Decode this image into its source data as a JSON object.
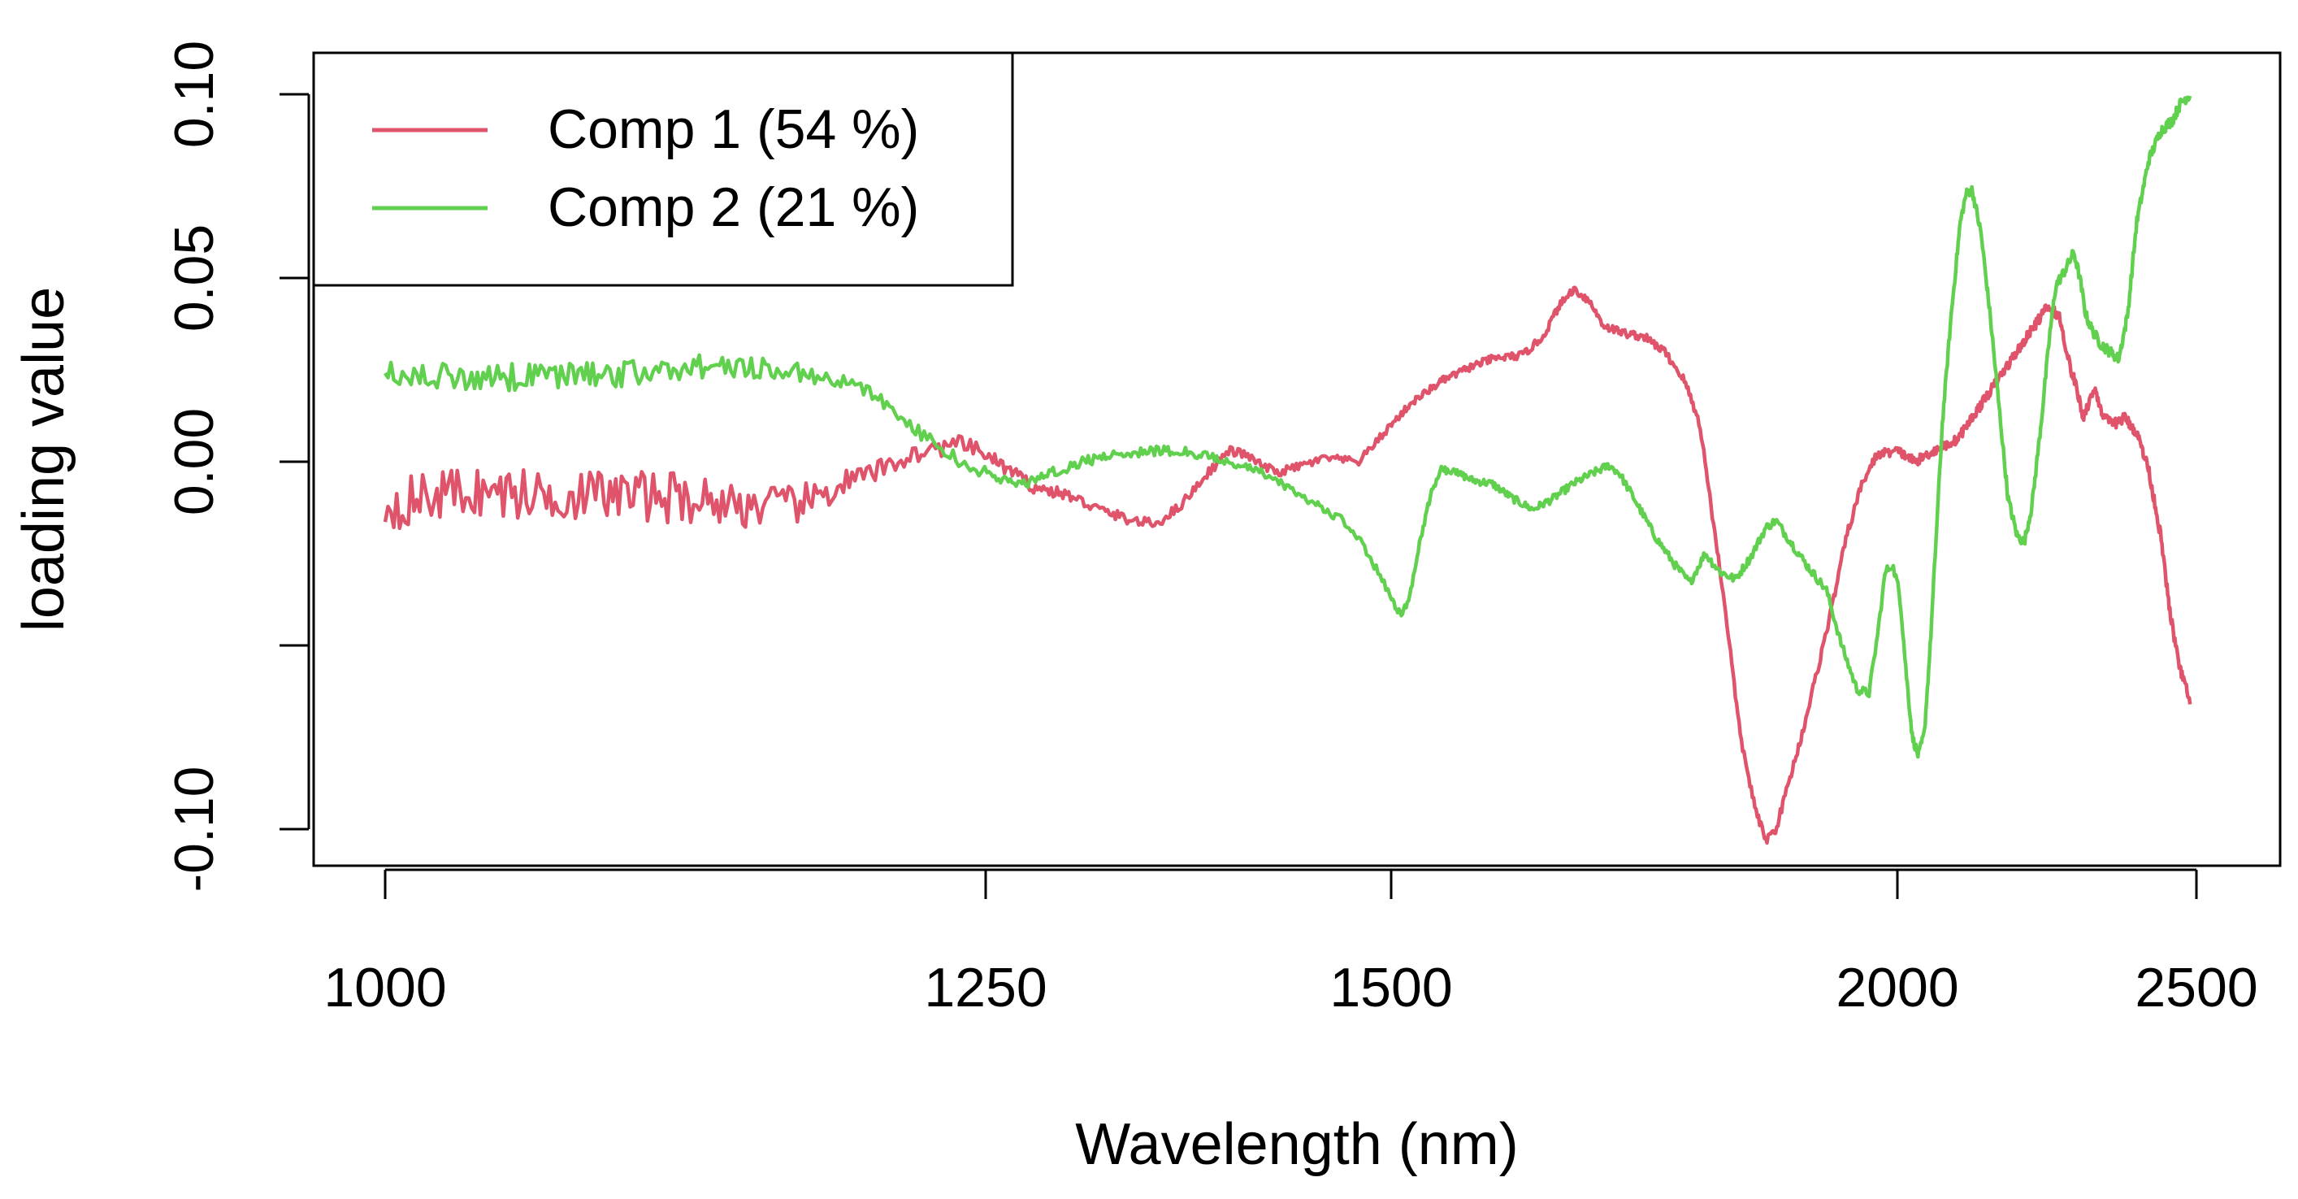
{
  "chart_data": {
    "type": "line",
    "title": "",
    "xlabel": "Wavelength (nm)",
    "ylabel": "loading value",
    "xticks": [
      {
        "label": "1000",
        "value": 1000
      },
      {
        "label": "1250",
        "value": 1250
      },
      {
        "label": "1500",
        "value": 1500
      },
      {
        "label": "2000",
        "value": 2000
      },
      {
        "label": "2500",
        "value": 2500
      }
    ],
    "yticks": [
      {
        "label": "-0.10",
        "value": -0.1
      },
      {
        "label": "",
        "value": -0.05
      },
      {
        "label": "0.00",
        "value": 0.0
      },
      {
        "label": "0.05",
        "value": 0.05
      },
      {
        "label": "0.10",
        "value": 0.1
      }
    ],
    "ylim": [
      -0.111,
      0.111
    ],
    "legend_position": "top-left",
    "series": [
      {
        "name": "Comp 1 (54 %)",
        "color": "#DF536B",
        "noise": [
          [
            1000,
            0.007
          ],
          [
            1120,
            0.007
          ],
          [
            1180,
            0.005
          ],
          [
            1200,
            0.003
          ],
          [
            1250,
            0.002
          ],
          [
            1300,
            0.0015
          ],
          [
            1500,
            0.001
          ],
          [
            2500,
            0.0015
          ]
        ],
        "points": [
          [
            1000,
            -0.012
          ],
          [
            1030,
            -0.008
          ],
          [
            1060,
            -0.009
          ],
          [
            1100,
            -0.009
          ],
          [
            1130,
            -0.01
          ],
          [
            1150,
            -0.012
          ],
          [
            1170,
            -0.012
          ],
          [
            1180,
            -0.01
          ],
          [
            1190,
            -0.006
          ],
          [
            1200,
            -0.004
          ],
          [
            1220,
            0.002
          ],
          [
            1240,
            0.005
          ],
          [
            1260,
            -0.001
          ],
          [
            1280,
            -0.007
          ],
          [
            1300,
            -0.009
          ],
          [
            1320,
            -0.013
          ],
          [
            1340,
            -0.016
          ],
          [
            1355,
            -0.017
          ],
          [
            1370,
            -0.012
          ],
          [
            1385,
            -0.004
          ],
          [
            1400,
            0.003
          ],
          [
            1410,
            0.002
          ],
          [
            1420,
            -0.001
          ],
          [
            1430,
            -0.003
          ],
          [
            1445,
            -0.001
          ],
          [
            1460,
            0.001
          ],
          [
            1480,
            0.0
          ],
          [
            1500,
            0.01
          ],
          [
            1520,
            0.016
          ],
          [
            1550,
            0.022
          ],
          [
            1580,
            0.026
          ],
          [
            1600,
            0.028
          ],
          [
            1630,
            0.029
          ],
          [
            1650,
            0.034
          ],
          [
            1665,
            0.042
          ],
          [
            1680,
            0.047
          ],
          [
            1695,
            0.044
          ],
          [
            1710,
            0.037
          ],
          [
            1730,
            0.035
          ],
          [
            1750,
            0.034
          ],
          [
            1770,
            0.03
          ],
          [
            1790,
            0.022
          ],
          [
            1805,
            0.01
          ],
          [
            1815,
            -0.01
          ],
          [
            1830,
            -0.04
          ],
          [
            1845,
            -0.075
          ],
          [
            1860,
            -0.095
          ],
          [
            1870,
            -0.103
          ],
          [
            1880,
            -0.1
          ],
          [
            1890,
            -0.09
          ],
          [
            1905,
            -0.075
          ],
          [
            1920,
            -0.058
          ],
          [
            1935,
            -0.04
          ],
          [
            1950,
            -0.02
          ],
          [
            1965,
            -0.006
          ],
          [
            1980,
            0.002
          ],
          [
            2000,
            0.003
          ],
          [
            2030,
            0.0
          ],
          [
            2050,
            0.002
          ],
          [
            2100,
            0.006
          ],
          [
            2150,
            0.018
          ],
          [
            2200,
            0.03
          ],
          [
            2250,
            0.042
          ],
          [
            2270,
            0.04
          ],
          [
            2290,
            0.025
          ],
          [
            2300,
            0.02
          ],
          [
            2310,
            0.012
          ],
          [
            2330,
            0.02
          ],
          [
            2345,
            0.012
          ],
          [
            2360,
            0.01
          ],
          [
            2380,
            0.012
          ],
          [
            2400,
            0.008
          ],
          [
            2420,
            -0.002
          ],
          [
            2440,
            -0.02
          ],
          [
            2455,
            -0.04
          ],
          [
            2470,
            -0.055
          ],
          [
            2485,
            -0.063
          ],
          [
            2490,
            -0.067
          ]
        ]
      },
      {
        "name": "Comp 2 (21 %)",
        "color": "#61D04F",
        "noise": [
          [
            1000,
            0.004
          ],
          [
            1100,
            0.0035
          ],
          [
            1150,
            0.003
          ],
          [
            1200,
            0.002
          ],
          [
            1300,
            0.0015
          ],
          [
            1500,
            0.001
          ],
          [
            2500,
            0.0015
          ]
        ],
        "points": [
          [
            1000,
            0.024
          ],
          [
            1050,
            0.023
          ],
          [
            1100,
            0.024
          ],
          [
            1130,
            0.026
          ],
          [
            1150,
            0.026
          ],
          [
            1175,
            0.024
          ],
          [
            1200,
            0.02
          ],
          [
            1215,
            0.012
          ],
          [
            1230,
            0.004
          ],
          [
            1245,
            -0.002
          ],
          [
            1260,
            -0.005
          ],
          [
            1275,
            -0.006
          ],
          [
            1290,
            -0.003
          ],
          [
            1310,
            0.0
          ],
          [
            1330,
            0.002
          ],
          [
            1350,
            0.003
          ],
          [
            1370,
            0.003
          ],
          [
            1390,
            0.001
          ],
          [
            1400,
            0.0
          ],
          [
            1420,
            -0.003
          ],
          [
            1440,
            -0.008
          ],
          [
            1455,
            -0.012
          ],
          [
            1470,
            -0.016
          ],
          [
            1480,
            -0.021
          ],
          [
            1492,
            -0.03
          ],
          [
            1500,
            -0.037
          ],
          [
            1510,
            -0.042
          ],
          [
            1518,
            -0.037
          ],
          [
            1528,
            -0.022
          ],
          [
            1540,
            -0.008
          ],
          [
            1550,
            -0.002
          ],
          [
            1565,
            -0.003
          ],
          [
            1580,
            -0.005
          ],
          [
            1600,
            -0.006
          ],
          [
            1620,
            -0.01
          ],
          [
            1640,
            -0.013
          ],
          [
            1660,
            -0.01
          ],
          [
            1680,
            -0.006
          ],
          [
            1700,
            -0.003
          ],
          [
            1715,
            -0.001
          ],
          [
            1725,
            -0.003
          ],
          [
            1740,
            -0.01
          ],
          [
            1760,
            -0.02
          ],
          [
            1780,
            -0.028
          ],
          [
            1795,
            -0.033
          ],
          [
            1810,
            -0.025
          ],
          [
            1825,
            -0.03
          ],
          [
            1840,
            -0.032
          ],
          [
            1855,
            -0.026
          ],
          [
            1870,
            -0.018
          ],
          [
            1880,
            -0.016
          ],
          [
            1895,
            -0.022
          ],
          [
            1910,
            -0.028
          ],
          [
            1930,
            -0.035
          ],
          [
            1945,
            -0.05
          ],
          [
            1960,
            -0.062
          ],
          [
            1972,
            -0.063
          ],
          [
            1980,
            -0.048
          ],
          [
            1988,
            -0.03
          ],
          [
            1995,
            -0.028
          ],
          [
            2005,
            -0.038
          ],
          [
            2015,
            -0.058
          ],
          [
            2025,
            -0.075
          ],
          [
            2035,
            -0.08
          ],
          [
            2045,
            -0.074
          ],
          [
            2055,
            -0.05
          ],
          [
            2065,
            -0.02
          ],
          [
            2075,
            0.01
          ],
          [
            2090,
            0.04
          ],
          [
            2105,
            0.065
          ],
          [
            2115,
            0.073
          ],
          [
            2125,
            0.074
          ],
          [
            2140,
            0.062
          ],
          [
            2155,
            0.04
          ],
          [
            2170,
            0.015
          ],
          [
            2185,
            -0.01
          ],
          [
            2200,
            -0.02
          ],
          [
            2212,
            -0.022
          ],
          [
            2225,
            -0.012
          ],
          [
            2240,
            0.01
          ],
          [
            2255,
            0.035
          ],
          [
            2265,
            0.048
          ],
          [
            2280,
            0.052
          ],
          [
            2295,
            0.057
          ],
          [
            2305,
            0.05
          ],
          [
            2315,
            0.04
          ],
          [
            2325,
            0.036
          ],
          [
            2340,
            0.032
          ],
          [
            2355,
            0.03
          ],
          [
            2370,
            0.028
          ],
          [
            2385,
            0.04
          ],
          [
            2400,
            0.065
          ],
          [
            2420,
            0.082
          ],
          [
            2440,
            0.09
          ],
          [
            2460,
            0.093
          ],
          [
            2475,
            0.098
          ],
          [
            2490,
            0.1
          ]
        ]
      }
    ]
  }
}
